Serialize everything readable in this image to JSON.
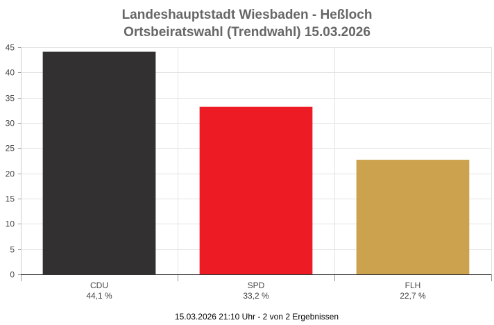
{
  "header": {
    "title_line1": "Landeshauptstadt Wiesbaden - Heßloch",
    "title_line2": "Ortsbeiratswahl (Trendwahl) 15.03.2026"
  },
  "footer": {
    "status": "15.03.2026 21:10 Uhr - 2 von 2 Ergebnissen"
  },
  "chart_data": {
    "type": "bar",
    "title": "Landeshauptstadt Wiesbaden - Heßloch\nOrtsbeiratswahl (Trendwahl) 15.03.2026",
    "categories": [
      "CDU",
      "SPD",
      "FLH"
    ],
    "values": [
      44.1,
      33.2,
      22.7
    ],
    "value_labels": [
      "44,1 %",
      "33,2 %",
      "22,7 %"
    ],
    "colors": [
      "#323031",
      "#ed1c24",
      "#cda24f"
    ],
    "ylim": [
      0,
      45
    ],
    "yticks": [
      0,
      5,
      10,
      15,
      20,
      25,
      30,
      35,
      40,
      45
    ],
    "xlabel": "",
    "ylabel": "",
    "grid": true,
    "legend": "none"
  }
}
